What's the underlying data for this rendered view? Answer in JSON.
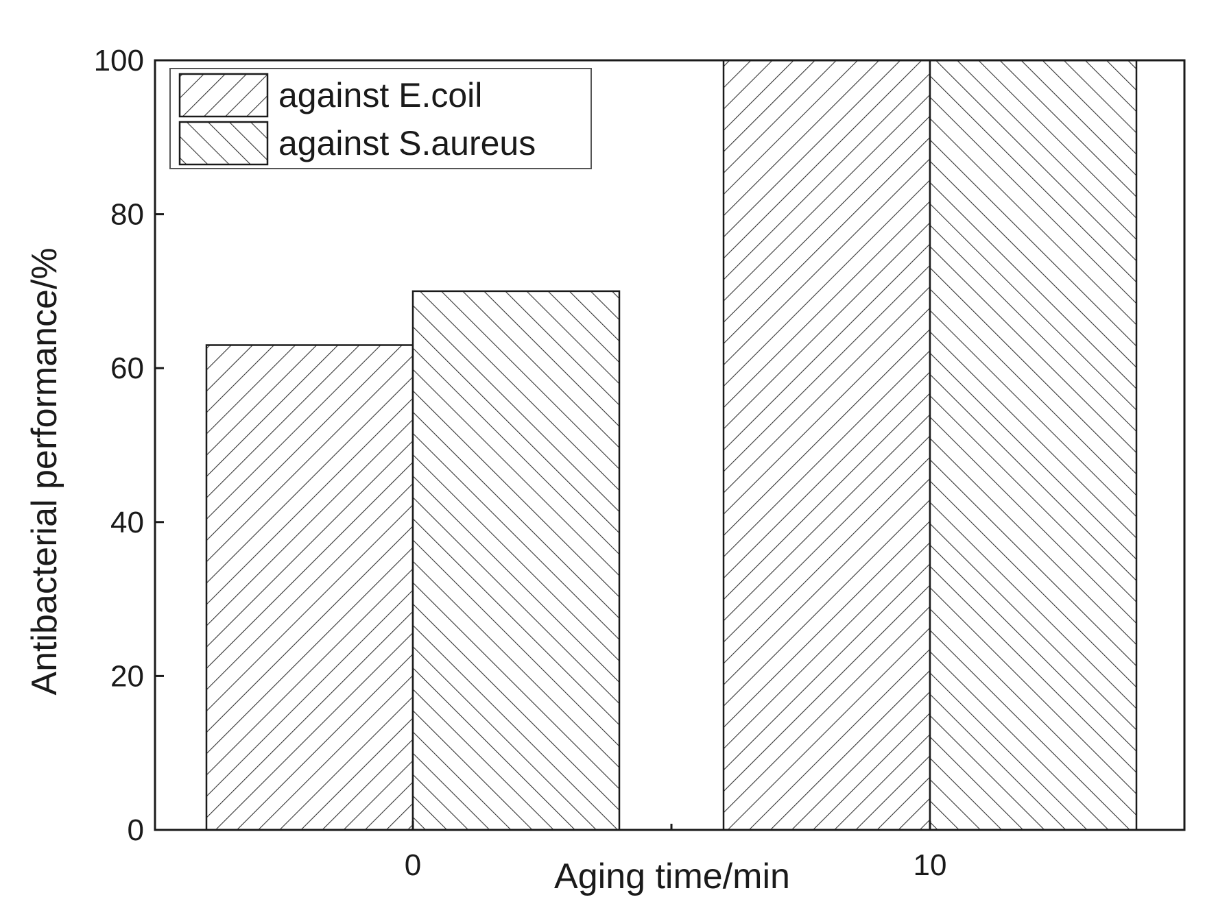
{
  "chart_data": {
    "type": "bar",
    "categories": [
      "0",
      "10"
    ],
    "series": [
      {
        "name": "against E.coil",
        "values": [
          63,
          100
        ],
        "pattern": "forward-hatch"
      },
      {
        "name": "against S.aureus",
        "values": [
          70,
          100
        ],
        "pattern": "backward-hatch"
      }
    ],
    "xlabel": "Aging time/min",
    "ylabel": "Antibacterial performance/%",
    "ylim": [
      0,
      100
    ],
    "yticks": [
      "0",
      "20",
      "40",
      "60",
      "80",
      "100"
    ],
    "grid": false,
    "legend_position": "top-left"
  },
  "colors": {
    "background": "#ffffff",
    "stroke": "#1a1a1a",
    "hatch": "#333333"
  }
}
